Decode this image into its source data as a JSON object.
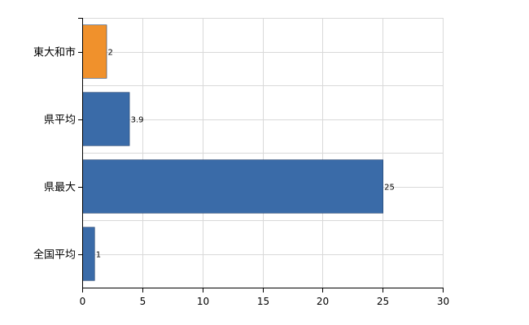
{
  "chart_data": {
    "type": "bar",
    "orientation": "horizontal",
    "categories": [
      "東大和市",
      "県平均",
      "県最大",
      "全国平均"
    ],
    "values": [
      2,
      3.9,
      25,
      1
    ],
    "value_labels": [
      "2",
      "3.9",
      "25",
      "1"
    ],
    "bar_colors": [
      "#f0912c",
      "#3a6ba8",
      "#3a6ba8",
      "#3a6ba8"
    ],
    "bar_stroke": "#1f3f6b",
    "title": "",
    "xlabel": "",
    "ylabel": "",
    "xlim": [
      0,
      30
    ],
    "x_ticks": [
      0,
      5,
      10,
      15,
      20,
      25,
      30
    ],
    "x_tick_labels": [
      "0",
      "5",
      "10",
      "15",
      "20",
      "25",
      "30"
    ],
    "grid": true,
    "legend": "none"
  }
}
